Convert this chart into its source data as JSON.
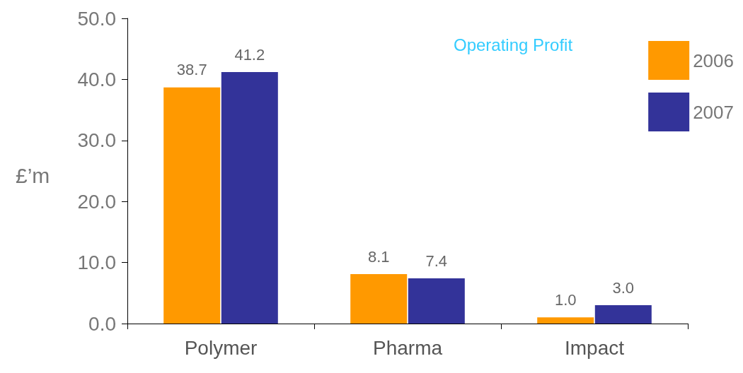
{
  "chart_data": {
    "type": "bar",
    "title": "Operating Profit",
    "ylabel": "£’m",
    "categories": [
      "Polymer",
      "Pharma",
      "Impact"
    ],
    "series": [
      {
        "name": "2006",
        "color": "#ff9900",
        "values": [
          38.7,
          8.1,
          1.0
        ],
        "value_labels": [
          "38.7",
          "8.1",
          "1.0"
        ]
      },
      {
        "name": "2007",
        "color": "#333399",
        "values": [
          41.2,
          7.4,
          3.0
        ],
        "value_labels": [
          "41.2",
          "7.4",
          "3.0"
        ]
      }
    ],
    "ylim": [
      0,
      50
    ],
    "yticks": [
      {
        "value": 0,
        "label": "0.0"
      },
      {
        "value": 10,
        "label": "10.0"
      },
      {
        "value": 20,
        "label": "20.0"
      },
      {
        "value": 30,
        "label": "30.0"
      },
      {
        "value": 40,
        "label": "40.0"
      },
      {
        "value": 50,
        "label": "50.0"
      }
    ],
    "grid": false,
    "legend": "top right"
  }
}
